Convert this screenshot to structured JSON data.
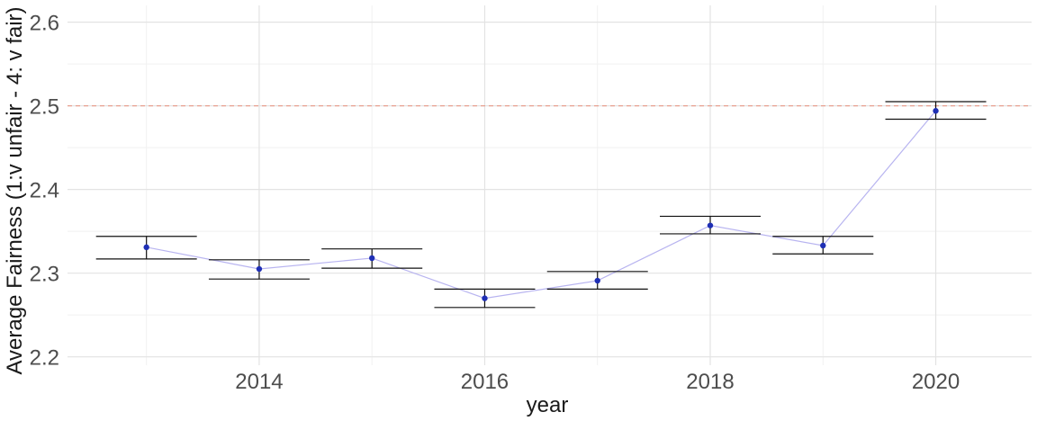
{
  "chart_data": {
    "type": "scatter",
    "title": "",
    "xlabel": "year",
    "ylabel": "Average Fairness (1:v unfair - 4: v fair)",
    "xlim": [
      2012.3,
      2020.85
    ],
    "ylim": [
      2.19,
      2.62
    ],
    "x_ticks": [
      2014,
      2016,
      2018,
      2020
    ],
    "x_tick_labels": [
      "2014",
      "2016",
      "2018",
      "2020"
    ],
    "y_ticks": [
      2.2,
      2.3,
      2.4,
      2.5,
      2.6
    ],
    "y_tick_labels": [
      "2.2",
      "2.3",
      "2.4",
      "2.5",
      "2.6"
    ],
    "grid": true,
    "reference_line": {
      "y": 2.5,
      "style": "dashed",
      "color": "#e8a090"
    },
    "series": [
      {
        "x": [
          2013,
          2014,
          2015,
          2016,
          2017,
          2018,
          2019,
          2020
        ],
        "y": [
          2.331,
          2.305,
          2.318,
          2.27,
          2.291,
          2.357,
          2.333,
          2.494
        ],
        "error_low": [
          2.317,
          2.293,
          2.306,
          2.259,
          2.281,
          2.347,
          2.323,
          2.484
        ],
        "error_high": [
          2.344,
          2.316,
          2.329,
          2.281,
          2.302,
          2.368,
          2.344,
          2.505
        ],
        "point_color": "#1f2fb5",
        "line_color": "#b8b4f0"
      }
    ]
  }
}
